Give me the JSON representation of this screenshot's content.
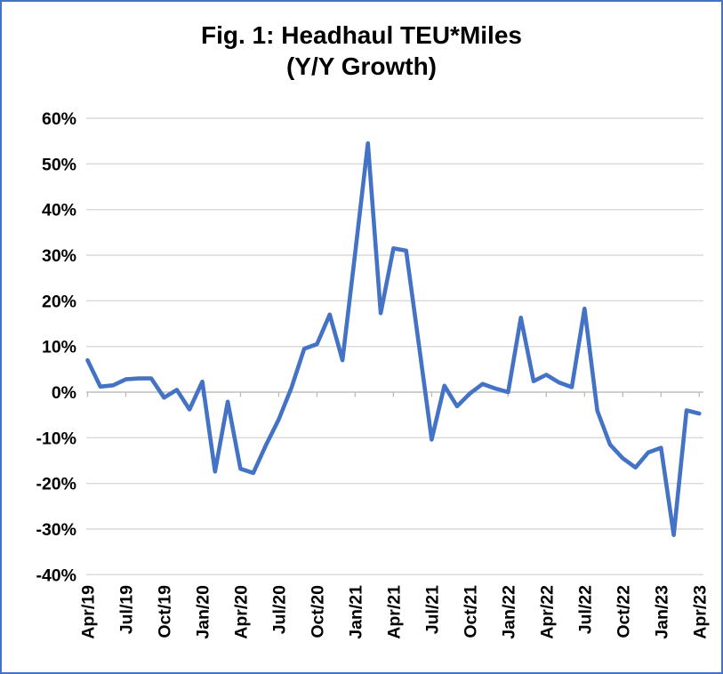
{
  "chart_data": {
    "type": "line",
    "title": "Fig. 1: Headhaul TEU*Miles",
    "subtitle": "(Y/Y Growth)",
    "x": [
      "Apr/19",
      "May/19",
      "Jun/19",
      "Jul/19",
      "Aug/19",
      "Sep/19",
      "Oct/19",
      "Nov/19",
      "Dec/19",
      "Jan/20",
      "Feb/20",
      "Mar/20",
      "Apr/20",
      "May/20",
      "Jun/20",
      "Jul/20",
      "Aug/20",
      "Sep/20",
      "Oct/20",
      "Nov/20",
      "Dec/20",
      "Jan/21",
      "Feb/21",
      "Mar/21",
      "Apr/21",
      "May/21",
      "Jun/21",
      "Jul/21",
      "Aug/21",
      "Sep/21",
      "Oct/21",
      "Nov/21",
      "Dec/21",
      "Jan/22",
      "Feb/22",
      "Mar/22",
      "Apr/22",
      "May/22",
      "Jun/22",
      "Jul/22",
      "Aug/22",
      "Sep/22",
      "Oct/22",
      "Nov/22",
      "Dec/22",
      "Jan/23",
      "Feb/23",
      "Mar/23",
      "Apr/23"
    ],
    "values": [
      7,
      1.2,
      1.5,
      2.8,
      3,
      3,
      -1.2,
      0.5,
      -3.8,
      2.3,
      -17.4,
      -2.1,
      -16.8,
      -17.7,
      -11.6,
      -6,
      1,
      9.5,
      10.5,
      17,
      7,
      30.5,
      54.5,
      17.3,
      31.5,
      31,
      10.3,
      -10.4,
      1.4,
      -3.1,
      -0.3,
      1.8,
      0.8,
      0,
      16.3,
      2.4,
      3.8,
      2.1,
      1.1,
      18.3,
      -4.1,
      -11.5,
      -14.5,
      -16.5,
      -13.2,
      -12.2,
      -31.3,
      -4,
      -4.7
    ],
    "x_tick_labels_shown": [
      "Apr/19",
      "Jul/19",
      "Oct/19",
      "Jan/20",
      "Apr/20",
      "Jul/20",
      "Oct/20",
      "Jan/21",
      "Apr/21",
      "Jul/21",
      "Oct/21",
      "Jan/22",
      "Apr/22",
      "Jul/22",
      "Oct/22",
      "Jan/23",
      "Apr/23"
    ],
    "x_tick_every_n_points": 3,
    "y_axis": {
      "tick_values": [
        60,
        50,
        40,
        30,
        20,
        10,
        0,
        -10,
        -20,
        -30,
        -40
      ],
      "tick_labels": [
        "60%",
        "50%",
        "40%",
        "30%",
        "20%",
        "10%",
        "0%",
        "-10%",
        "-20%",
        "-30%",
        "-40%"
      ]
    },
    "ylim": [
      -40,
      60
    ],
    "xlabel": "",
    "ylabel": "",
    "legend": "none",
    "grid": "horizontal-major",
    "x_label_rotation_deg": -90,
    "colors": {
      "line": "#4472C4",
      "gridline": "#D9D9D9",
      "axis": "#BFBFBF",
      "text": "#000000",
      "border": "#4472C4",
      "background": "#FFFFFF"
    }
  }
}
